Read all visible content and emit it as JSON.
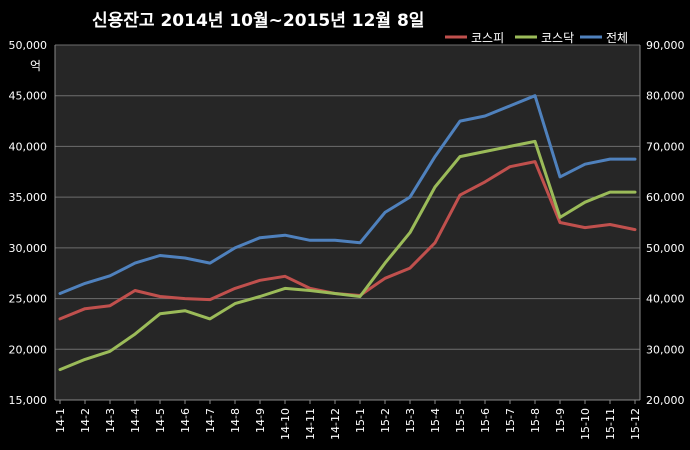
{
  "chart_data": {
    "type": "line",
    "title": "신용잔고 2014년 10월~2015년 12월 8일",
    "ylabel_left": "억",
    "ylim_left": [
      15000,
      50000
    ],
    "ylim_right": [
      20000,
      90000
    ],
    "yticks_left": [
      "15,000",
      "20,000",
      "25,000",
      "30,000",
      "35,000",
      "40,000",
      "45,000",
      "50,000"
    ],
    "yticks_right": [
      "20,000",
      "30,000",
      "40,000",
      "50,000",
      "60,000",
      "70,000",
      "80,000",
      "90,000"
    ],
    "categories": [
      "14-1",
      "14-2",
      "14-3",
      "14-4",
      "14-5",
      "14-6",
      "14-7",
      "14-8",
      "14-9",
      "14-10",
      "14-11",
      "14-12",
      "15-1",
      "15-2",
      "15-3",
      "15-4",
      "15-5",
      "15-6",
      "15-7",
      "15-8",
      "15-9",
      "15-10",
      "15-11",
      "15-12"
    ],
    "grid": true,
    "legend_position": "top-right",
    "series": [
      {
        "name": "코스피",
        "axis": "left",
        "color": "#c0504d",
        "values": [
          23000,
          24000,
          24300,
          25800,
          25200,
          25000,
          24900,
          26000,
          26800,
          27200,
          26000,
          25500,
          25300,
          27000,
          28000,
          30500,
          35200,
          36500,
          38000,
          38500,
          32500,
          32000,
          32300,
          31800
        ]
      },
      {
        "name": "코스닥",
        "axis": "left",
        "color": "#9bbb59",
        "values": [
          18000,
          19000,
          19800,
          21500,
          23500,
          23800,
          23000,
          24500,
          25200,
          26000,
          25800,
          25500,
          25200,
          28500,
          31500,
          36000,
          39000,
          39500,
          40000,
          40500,
          33000,
          34500,
          35500,
          35500
        ]
      },
      {
        "name": "전체",
        "axis": "right",
        "color": "#4f81bd",
        "values": [
          41000,
          43000,
          44500,
          47000,
          48500,
          48000,
          47000,
          50000,
          52000,
          52500,
          51500,
          51500,
          51000,
          57000,
          60000,
          68000,
          75000,
          76000,
          78000,
          80000,
          64000,
          66500,
          67500,
          67500
        ]
      }
    ]
  }
}
